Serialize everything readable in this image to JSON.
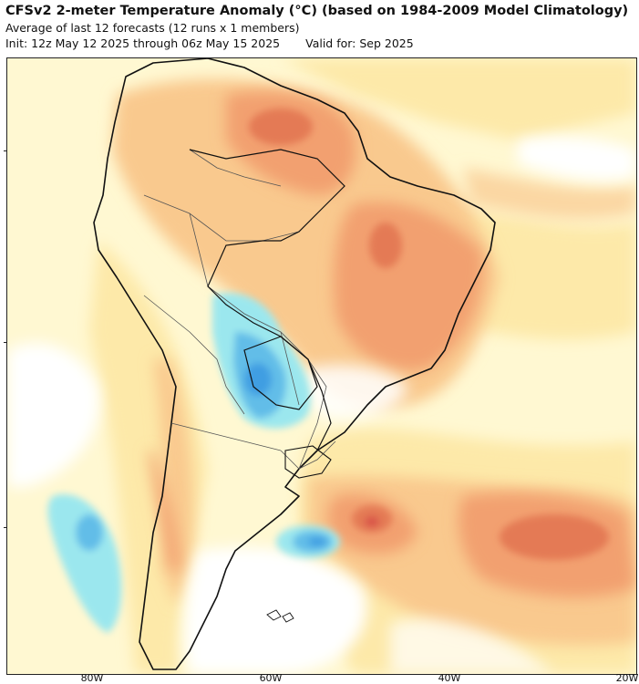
{
  "header": {
    "title": "CFSv2 2-meter Temperature Anomaly (°C) (based on 1984-2009 Model Climatology)",
    "subtitle": "Average of last 12 forecasts (12 runs x 1 members)",
    "init": "Init: 12z May 12 2025 through 06z May 15 2025",
    "valid": "Valid for: Sep 2025"
  },
  "map": {
    "region": "South America",
    "longitude_labels": [
      "80W",
      "60W",
      "40W",
      "20W"
    ],
    "colors": {
      "background_yellow": "#fff8d2",
      "light_yellow": "#fde9a9",
      "light_orange": "#f9c98e",
      "orange": "#f2a070",
      "dark_orange": "#e47a55",
      "red": "#d9534a",
      "light_blue": "#9be7ee",
      "blue": "#62bde8",
      "dark_blue": "#3f9ee2",
      "white": "#ffffff",
      "coastline": "#111111",
      "border": "#555555"
    }
  }
}
